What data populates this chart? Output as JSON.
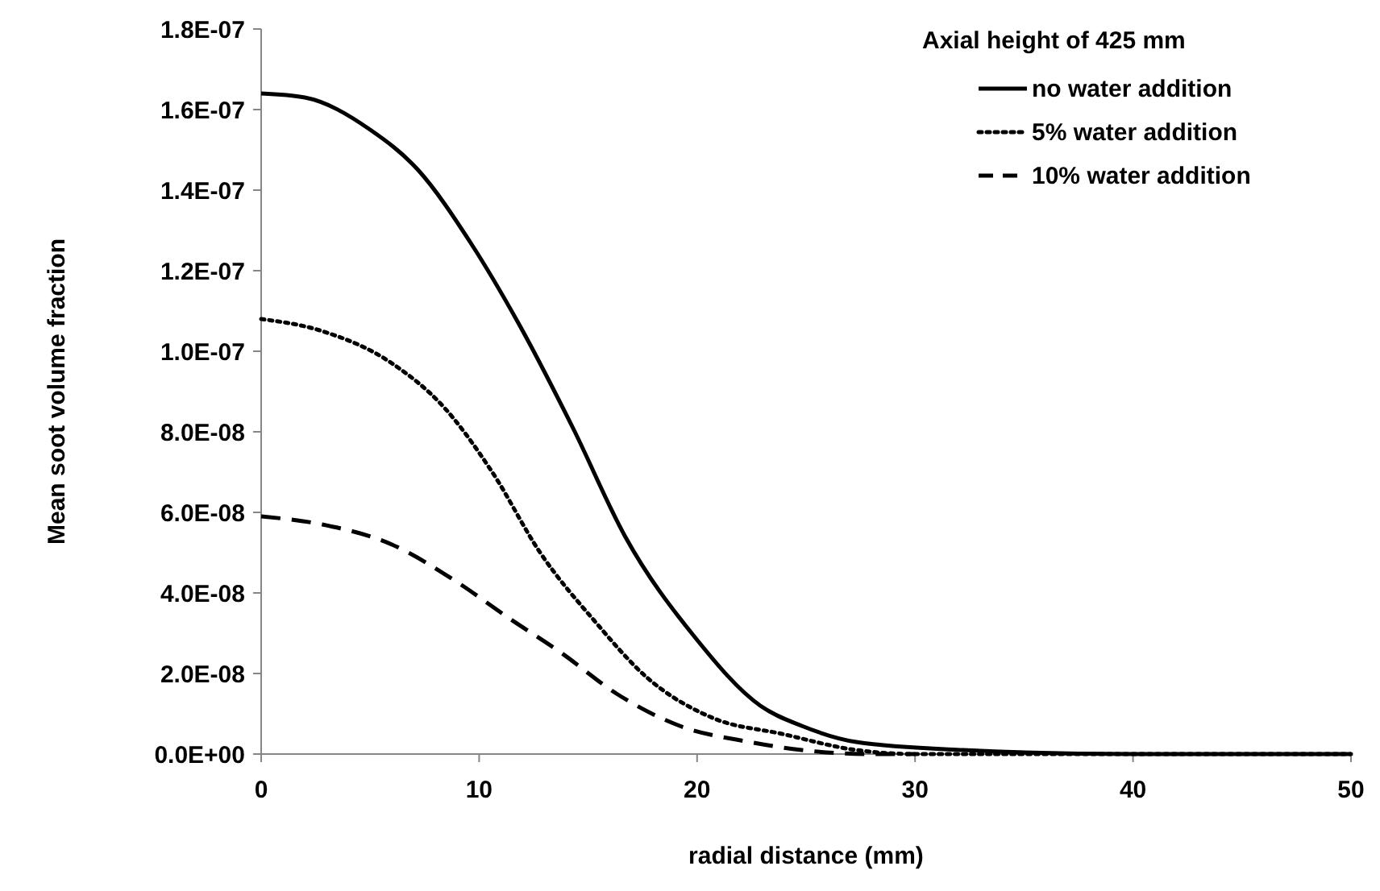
{
  "chart_data": {
    "type": "line",
    "xlabel": "radial distance  (mm)",
    "ylabel": "Mean soot volume fraction",
    "legend_title": "Axial height of 425 mm",
    "legend": "top right",
    "grid": false,
    "marker": "none",
    "xlim": [
      0,
      50
    ],
    "xticks": [
      0,
      10,
      20,
      30,
      40,
      50
    ],
    "ylim": [
      0,
      1.8e-07
    ],
    "yticks": [
      {
        "value": 0,
        "label": "0.0E+00"
      },
      {
        "value": 2e-08,
        "label": "2.0E-08"
      },
      {
        "value": 4e-08,
        "label": "4.0E-08"
      },
      {
        "value": 6e-08,
        "label": "6.0E-08"
      },
      {
        "value": 8e-08,
        "label": "8.0E-08"
      },
      {
        "value": 1e-07,
        "label": "1.0E-07"
      },
      {
        "value": 1.2e-07,
        "label": "1.2E-07"
      },
      {
        "value": 1.4e-07,
        "label": "1.4E-07"
      },
      {
        "value": 1.6e-07,
        "label": "1.6E-07"
      },
      {
        "value": 1.8e-07,
        "label": "1.8E-07"
      }
    ],
    "series": [
      {
        "name": "no water addition",
        "color": "#000000",
        "line_style": "solid",
        "x": [
          0,
          2,
          5,
          7.2,
          9.6,
          11.8,
          14.3,
          16.7,
          19.9,
          22.9,
          24.8,
          27.3,
          32.2,
          40,
          50
        ],
        "values": [
          1.64e-07,
          1.63e-07,
          1.55e-07,
          1.45e-07,
          1.27e-07,
          1.07e-07,
          8.1e-08,
          5.4e-08,
          2.9e-08,
          1.2e-08,
          7e-09,
          3e-09,
          1e-09,
          0,
          0
        ]
      },
      {
        "name": "5% water addition",
        "color": "#000000",
        "line_style": "dotted",
        "x": [
          0,
          2.8,
          6,
          8.4,
          10.6,
          12.8,
          15.3,
          17.7,
          20.7,
          23.9,
          27.3,
          30,
          40,
          50
        ],
        "values": [
          1.08e-07,
          1.05e-07,
          9.7e-08,
          8.6e-08,
          7e-08,
          5e-08,
          3.3e-08,
          1.9e-08,
          9e-09,
          5e-09,
          1e-09,
          0,
          0,
          0
        ]
      },
      {
        "name": "10% water addition",
        "color": "#000000",
        "line_style": "dashed",
        "x": [
          0,
          2.8,
          6,
          8.9,
          11.3,
          13.8,
          16.3,
          19.2,
          22.4,
          24.8,
          28,
          30
        ],
        "values": [
          5.9e-08,
          5.7e-08,
          5.2e-08,
          4.3e-08,
          3.4e-08,
          2.5e-08,
          1.5e-08,
          7e-09,
          3e-09,
          1e-09,
          0,
          0
        ]
      }
    ]
  }
}
